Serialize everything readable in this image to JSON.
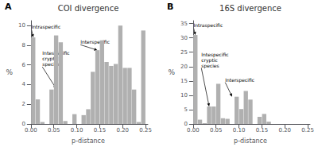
{
  "chart_data": [
    {
      "type": "histogram",
      "title": "COI divergence",
      "xlabel": "p-distance",
      "ylabel": "%",
      "color": "#b0b0b0",
      "bins": [
        0.0,
        0.01,
        0.02,
        0.03,
        0.04,
        0.05,
        0.06,
        0.07,
        0.08,
        0.09,
        0.1,
        0.11,
        0.12,
        0.13,
        0.14,
        0.15,
        0.16,
        0.17,
        0.18,
        0.19,
        0.2,
        0.21,
        0.22,
        0.23,
        0.24,
        0.25
      ],
      "values": [
        8.8,
        2.5,
        0.2,
        0.0,
        3.5,
        9.0,
        8.3,
        0.3,
        0.0,
        1.0,
        0.0,
        0.9,
        1.5,
        5.3,
        7.5,
        8.5,
        6.3,
        5.9,
        6.1,
        10.0,
        5.7,
        5.7,
        3.5,
        0.2,
        9.5
      ],
      "xlim": [
        -0.005,
        0.255
      ],
      "xticks": [
        {
          "value": 0.0,
          "label": "0.00"
        },
        0.05,
        {
          "value": 0.1,
          "label": "0.10"
        },
        0.15,
        {
          "value": 0.2,
          "label": "0.20"
        },
        0.25
      ],
      "ylim": [
        0,
        10.5
      ],
      "yticks": [
        0,
        2,
        4,
        6,
        8,
        10
      ],
      "grid": false,
      "annotations": [
        {
          "text": "A"
        },
        {
          "text": "Intraspecific",
          "x": 0.005,
          "y": 8.8,
          "text_x": 0.001,
          "text_y": 9.65
        },
        {
          "text": "Intespecific\ncryptic\nspecies",
          "x": 0.055,
          "y": 3.6,
          "text_x": 0.025,
          "text_y": 5.8
        },
        {
          "text": "Interspecific",
          "x": 0.145,
          "y": 7.5,
          "text_x": 0.108,
          "text_y": 8.05
        }
      ]
    },
    {
      "type": "histogram",
      "title": "16S divergence",
      "xlabel": "p-distance",
      "ylabel": "%",
      "color": "#b0b0b0",
      "bins": [
        0.0,
        0.01,
        0.02,
        0.03,
        0.04,
        0.05,
        0.06,
        0.07,
        0.08,
        0.09,
        0.1,
        0.11,
        0.12,
        0.13,
        0.14,
        0.15,
        0.16,
        0.17,
        0.18,
        0.19,
        0.2,
        0.21,
        0.22,
        0.23,
        0.24,
        0.25
      ],
      "values": [
        31.0,
        1.5,
        0.3,
        6.1,
        6.1,
        14.0,
        2.0,
        1.8,
        0.0,
        9.5,
        5.2,
        11.5,
        8.5,
        0.0,
        2.5,
        3.5,
        0.8,
        0.0,
        0.0,
        0.0,
        0.0,
        0.0,
        0.0,
        0.0,
        0.0
      ],
      "xlim": [
        -0.005,
        0.255
      ],
      "xticks": [
        {
          "value": 0.0,
          "label": "0.00"
        },
        0.05,
        {
          "value": 0.1,
          "label": "0.10"
        },
        0.15,
        {
          "value": 0.2,
          "label": "0.20"
        },
        0.25
      ],
      "ylim": [
        0,
        36
      ],
      "yticks": [
        0,
        5,
        10,
        15,
        20,
        25,
        30,
        35
      ],
      "grid": false,
      "annotations": [
        {
          "text": "B"
        },
        {
          "text": "Intraspecific",
          "x": 0.005,
          "y": 31.0,
          "text_x": 0.001,
          "text_y": 33.5
        },
        {
          "text": "Intespecific\ncryptic\nspecies",
          "x": 0.035,
          "y": 6.1,
          "text_x": 0.018,
          "text_y": 19.5
        },
        {
          "text": "Interspecific",
          "x": 0.085,
          "y": 9.5,
          "text_x": 0.07,
          "text_y": 14.5
        }
      ]
    }
  ]
}
